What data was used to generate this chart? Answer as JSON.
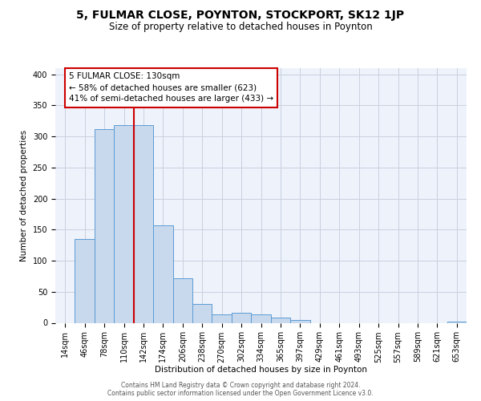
{
  "title": "5, FULMAR CLOSE, POYNTON, STOCKPORT, SK12 1JP",
  "subtitle": "Size of property relative to detached houses in Poynton",
  "xlabel": "Distribution of detached houses by size in Poynton",
  "ylabel": "Number of detached properties",
  "bin_labels": [
    "14sqm",
    "46sqm",
    "78sqm",
    "110sqm",
    "142sqm",
    "174sqm",
    "206sqm",
    "238sqm",
    "270sqm",
    "302sqm",
    "334sqm",
    "365sqm",
    "397sqm",
    "429sqm",
    "461sqm",
    "493sqm",
    "525sqm",
    "557sqm",
    "589sqm",
    "621sqm",
    "653sqm"
  ],
  "bar_heights": [
    0,
    135,
    312,
    318,
    318,
    157,
    72,
    30,
    13,
    16,
    14,
    8,
    4,
    0,
    0,
    0,
    0,
    0,
    0,
    0,
    2
  ],
  "bar_color": "#c8d9ed",
  "bar_edgecolor": "#5b9bd5",
  "grid_color": "#c8d0df",
  "background_color": "#eef2fb",
  "vline_color": "#cc0000",
  "vline_pos": 3.5,
  "annotation_text": "5 FULMAR CLOSE: 130sqm\n← 58% of detached houses are smaller (623)\n41% of semi-detached houses are larger (433) →",
  "annotation_box_edgecolor": "#cc0000",
  "annotation_box_facecolor": "#ffffff",
  "footer_line1": "Contains HM Land Registry data © Crown copyright and database right 2024.",
  "footer_line2": "Contains public sector information licensed under the Open Government Licence v3.0.",
  "ylim": [
    0,
    410
  ],
  "yticks": [
    0,
    50,
    100,
    150,
    200,
    250,
    300,
    350,
    400
  ],
  "title_fontsize": 10,
  "subtitle_fontsize": 8.5,
  "axis_label_fontsize": 7.5,
  "tick_fontsize": 7,
  "annotation_fontsize": 7.5,
  "footer_fontsize": 5.5
}
